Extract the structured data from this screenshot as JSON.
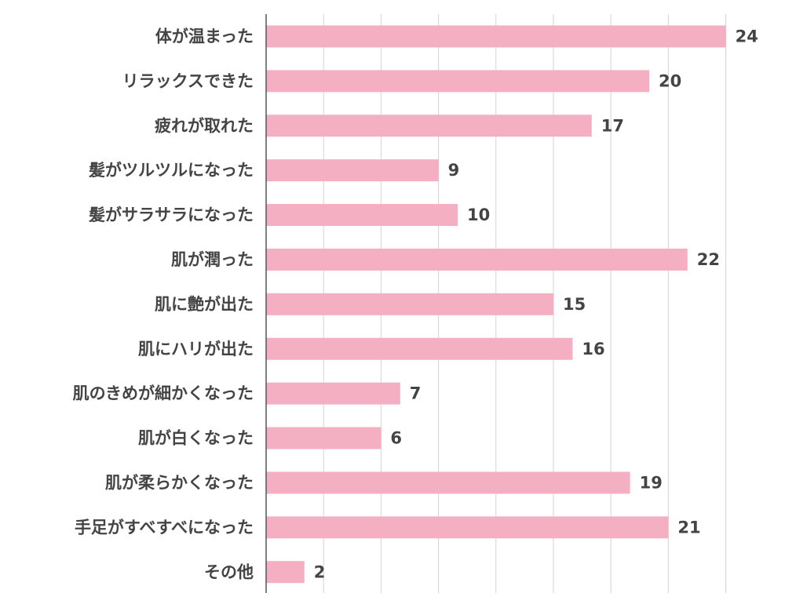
{
  "chart_data": {
    "type": "bar",
    "orientation": "horizontal",
    "categories": [
      "体が温まった",
      "リラックスできた",
      "疲れが取れた",
      "髪がツルツルになった",
      "髪がサラサラになった",
      "肌が潤った",
      "肌に艶が出た",
      "肌にハリが出た",
      "肌のきめが細かくなった",
      "肌が白くなった",
      "肌が柔らかくなった",
      "手足がすべすべになった",
      "その他"
    ],
    "values": [
      24,
      20,
      17,
      9,
      10,
      22,
      15,
      16,
      7,
      6,
      19,
      21,
      2
    ],
    "xlim": [
      0,
      26
    ],
    "grid": true,
    "data_labels": true,
    "bar_color": "#f4b0c2",
    "axis_color": "#555555",
    "grid_color": "#d3d3d3",
    "text_color": "#444444"
  }
}
